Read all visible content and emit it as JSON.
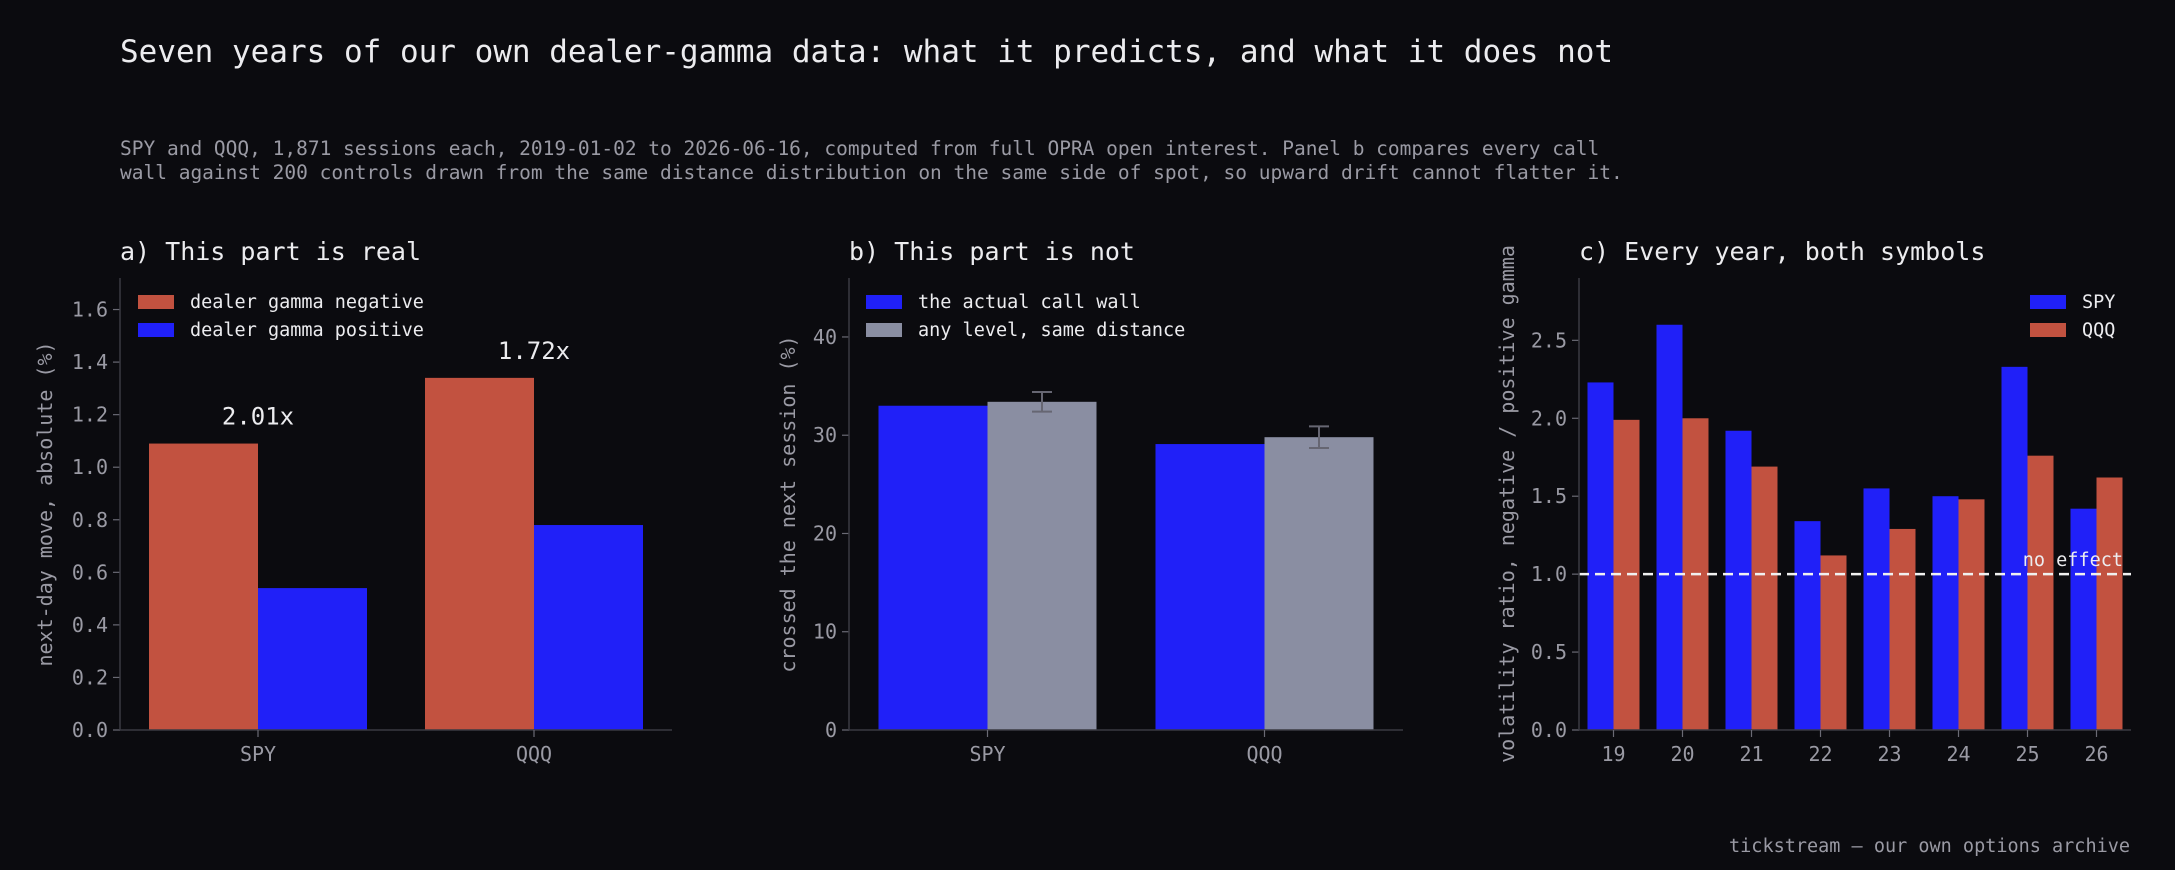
{
  "figure": {
    "title": "Seven years of our own dealer-gamma data: what it predicts, and what it does not",
    "subtitle_lines": [
      "SPY and QQQ, 1,871 sessions each, 2019-01-02 to 2026-06-16, computed from full OPRA open interest. Panel b compares every call",
      "wall against 200 controls drawn from the same distance distribution on the same side of spot, so upward drift cannot flatter it."
    ],
    "footer": "tickstream — our own options archive"
  },
  "colors": {
    "background": "#0b0b0f",
    "red": "#c25240",
    "blue": "#2020f8",
    "gray": "#8a8ea2",
    "errorbar": "#666672"
  },
  "chart_data": [
    {
      "panel": "a)",
      "title": "This part is real",
      "type": "bar",
      "categories": [
        "SPY",
        "QQQ"
      ],
      "series": [
        {
          "name": "dealer gamma negative",
          "values": [
            1.09,
            1.34
          ],
          "color": "#c25240"
        },
        {
          "name": "dealer gamma positive",
          "values": [
            0.54,
            0.78
          ],
          "color": "#2020f8"
        }
      ],
      "annotations": [
        "2.01x",
        "1.72x"
      ],
      "ylabel": "next-day move, absolute (%)",
      "ylim": [
        0,
        1.72
      ],
      "yticks": [
        "0.0",
        "0.2",
        "0.4",
        "0.6",
        "0.8",
        "1.0",
        "1.2",
        "1.4",
        "1.6"
      ],
      "legend_position": "top-left"
    },
    {
      "panel": "b)",
      "title": "This part is not",
      "type": "bar",
      "categories": [
        "SPY",
        "QQQ"
      ],
      "series": [
        {
          "name": "the actual call wall",
          "values": [
            33.0,
            29.1
          ],
          "color": "#2020f8"
        },
        {
          "name": "any level, same distance",
          "values": [
            33.4,
            29.8
          ],
          "error": [
            1.0,
            1.1
          ],
          "color": "#8a8ea2"
        }
      ],
      "ylabel": "crossed the next session (%)",
      "ylim": [
        0,
        46
      ],
      "yticks": [
        "0",
        "10",
        "20",
        "30",
        "40"
      ],
      "legend_position": "top-left"
    },
    {
      "panel": "c)",
      "title": "Every year, both symbols",
      "type": "bar",
      "categories": [
        "19",
        "20",
        "21",
        "22",
        "23",
        "24",
        "25",
        "26"
      ],
      "series": [
        {
          "name": "SPY",
          "values": [
            2.23,
            2.6,
            1.92,
            1.34,
            1.55,
            1.5,
            2.33,
            1.42
          ],
          "color": "#2020f8"
        },
        {
          "name": "QQQ",
          "values": [
            1.99,
            2.0,
            1.69,
            1.12,
            1.29,
            1.48,
            1.76,
            1.62
          ],
          "color": "#c25240"
        }
      ],
      "reference_line": {
        "value": 1.0,
        "label": "no effect"
      },
      "ylabel": "volatility ratio, negative / positive gamma",
      "ylim": [
        0,
        2.9
      ],
      "yticks": [
        "0.0",
        "0.5",
        "1.0",
        "1.5",
        "2.0",
        "2.5"
      ],
      "legend_position": "top-right"
    }
  ]
}
